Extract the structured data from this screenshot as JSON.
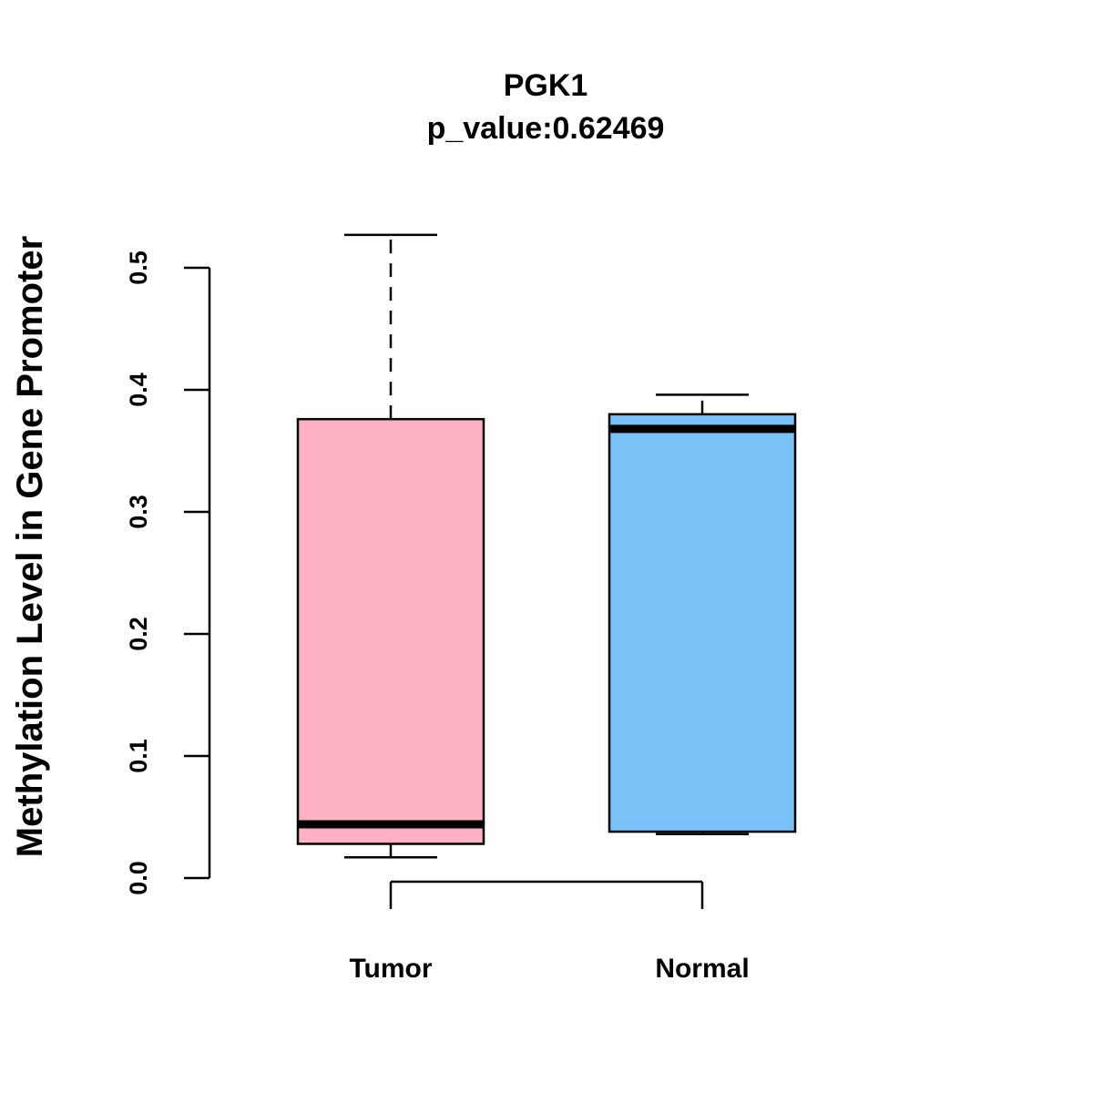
{
  "chart_data": {
    "type": "boxplot",
    "title": "PGK1",
    "subtitle": "p_value:0.62469",
    "xlabel": "",
    "ylabel": "Methylation Level in Gene Promoter",
    "ylim": [
      0.0,
      0.5
    ],
    "yticks": [
      "0.0",
      "0.1",
      "0.2",
      "0.3",
      "0.4",
      "0.5"
    ],
    "grid": false,
    "categories": [
      "Tumor",
      "Normal"
    ],
    "boxes": [
      {
        "name": "Tumor",
        "min": 0.017,
        "q1": 0.028,
        "median": 0.044,
        "q3": 0.376,
        "max": 0.527,
        "color": "#FDB1C3"
      },
      {
        "name": "Normal",
        "min": 0.036,
        "q1": 0.038,
        "median": 0.368,
        "q3": 0.38,
        "max": 0.396,
        "color": "#79C2F7"
      }
    ]
  }
}
